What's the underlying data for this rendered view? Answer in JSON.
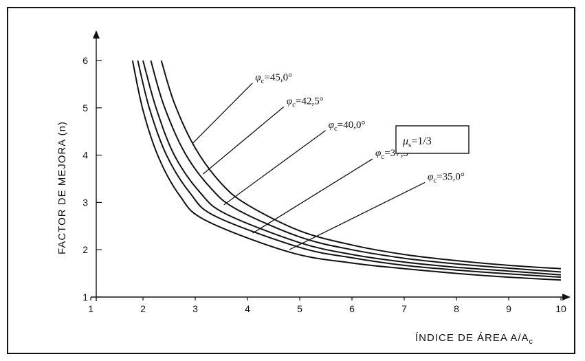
{
  "chart_data": {
    "type": "line",
    "xlabel": "ÍNDICE DE ÁREA A/A",
    "xlabel_sub": "c",
    "ylabel": "FACTOR DE MEJORA (n)",
    "xlim": [
      1,
      10
    ],
    "ylim": [
      1,
      6
    ],
    "x_ticks": [
      1,
      2,
      3,
      4,
      5,
      6,
      7,
      8,
      9,
      10
    ],
    "y_ticks": [
      1,
      2,
      3,
      4,
      5,
      6
    ],
    "box_annotation": {
      "symbol": "μ",
      "sub": "s",
      "text": "=1/3"
    },
    "series": [
      {
        "name": "φc=45,0°",
        "symbol": "φ",
        "sub": "c",
        "value": "=45,0°",
        "x": [
          2.35,
          2.6,
          3.0,
          3.5,
          4.0,
          5.0,
          6.0,
          7.0,
          8.0,
          9.0,
          10.0
        ],
        "y": [
          6.0,
          5.1,
          4.15,
          3.4,
          2.95,
          2.4,
          2.1,
          1.9,
          1.77,
          1.67,
          1.6
        ]
      },
      {
        "name": "φc=42,5°",
        "symbol": "φ",
        "sub": "c",
        "value": "=42,5°",
        "x": [
          2.15,
          2.4,
          2.8,
          3.3,
          3.8,
          5.0,
          6.0,
          7.0,
          8.0,
          9.0,
          10.0
        ],
        "y": [
          6.0,
          5.05,
          4.05,
          3.3,
          2.85,
          2.27,
          2.0,
          1.82,
          1.7,
          1.61,
          1.53
        ]
      },
      {
        "name": "φc=40,0°",
        "symbol": "φ",
        "sub": "c",
        "value": "=40,0°",
        "x": [
          2.0,
          2.25,
          2.6,
          3.1,
          3.6,
          5.0,
          6.0,
          7.0,
          8.0,
          9.0,
          10.0
        ],
        "y": [
          6.0,
          5.0,
          4.0,
          3.2,
          2.75,
          2.15,
          1.9,
          1.74,
          1.63,
          1.55,
          1.47
        ]
      },
      {
        "name": "φc=37,5°",
        "symbol": "φ",
        "sub": "c",
        "value": "=37,5°",
        "x": [
          1.9,
          2.12,
          2.45,
          2.9,
          3.4,
          5.0,
          6.0,
          7.0,
          8.0,
          9.0,
          10.0
        ],
        "y": [
          6.0,
          5.0,
          4.0,
          3.2,
          2.7,
          2.05,
          1.83,
          1.67,
          1.57,
          1.49,
          1.42
        ]
      },
      {
        "name": "φc=35,0°",
        "symbol": "φ",
        "sub": "c",
        "value": "=35,0°",
        "x": [
          1.8,
          2.0,
          2.3,
          2.7,
          3.2,
          4.8,
          6.0,
          7.0,
          8.0,
          9.0,
          10.0
        ],
        "y": [
          6.0,
          4.95,
          3.95,
          3.15,
          2.62,
          1.95,
          1.72,
          1.6,
          1.5,
          1.42,
          1.36
        ]
      }
    ],
    "curve_labels": [
      {
        "series": 0,
        "point": [
          2.95,
          4.25
        ],
        "text_at": [
          4.2,
          5.55
        ]
      },
      {
        "series": 1,
        "point": [
          3.15,
          3.6
        ],
        "text_at": [
          4.8,
          5.05
        ]
      },
      {
        "series": 2,
        "point": [
          3.55,
          2.95
        ],
        "text_at": [
          5.6,
          4.55
        ]
      },
      {
        "series": 3,
        "point": [
          4.1,
          2.35
        ],
        "text_at": [
          6.5,
          3.95
        ]
      },
      {
        "series": 4,
        "point": [
          4.8,
          2.0
        ],
        "text_at": [
          7.5,
          3.45
        ]
      }
    ],
    "grid": false,
    "legend": "none"
  }
}
